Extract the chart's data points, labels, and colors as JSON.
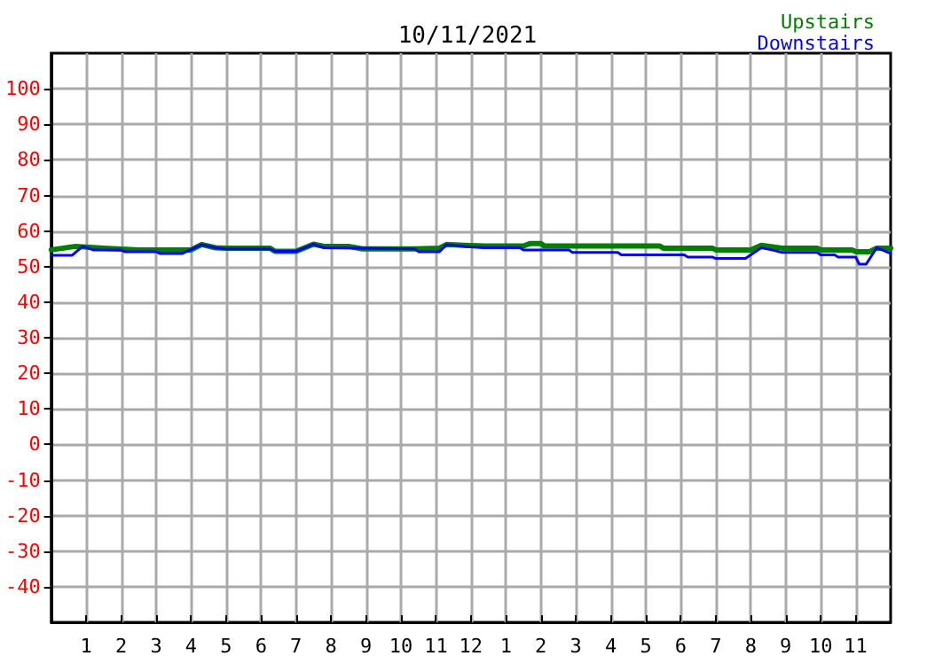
{
  "chart_data": {
    "type": "line",
    "title": "10/11/2021",
    "xlim": [
      "2021-10-11T00:00",
      "2021-10-12T00:00"
    ],
    "ylim": [
      -50,
      110
    ],
    "xticks": [
      {
        "value": "2021-10-11T01:00",
        "label": "1"
      },
      {
        "value": "2021-10-11T02:00",
        "label": "2"
      },
      {
        "value": "2021-10-11T03:00",
        "label": "3"
      },
      {
        "value": "2021-10-11T04:00",
        "label": "4"
      },
      {
        "value": "2021-10-11T05:00",
        "label": "5"
      },
      {
        "value": "2021-10-11T06:00",
        "label": "6"
      },
      {
        "value": "2021-10-11T07:00",
        "label": "7"
      },
      {
        "value": "2021-10-11T08:00",
        "label": "8"
      },
      {
        "value": "2021-10-11T09:00",
        "label": "9"
      },
      {
        "value": "2021-10-11T10:00",
        "label": "10"
      },
      {
        "value": "2021-10-11T11:00",
        "label": "11"
      },
      {
        "value": "2021-10-11T12:00",
        "label": "12"
      },
      {
        "value": "2021-10-11T13:00",
        "label": "1"
      },
      {
        "value": "2021-10-11T14:00",
        "label": "2"
      },
      {
        "value": "2021-10-11T15:00",
        "label": "3"
      },
      {
        "value": "2021-10-11T16:00",
        "label": "4"
      },
      {
        "value": "2021-10-11T17:00",
        "label": "5"
      },
      {
        "value": "2021-10-11T18:00",
        "label": "6"
      },
      {
        "value": "2021-10-11T19:00",
        "label": "7"
      },
      {
        "value": "2021-10-11T20:00",
        "label": "8"
      },
      {
        "value": "2021-10-11T21:00",
        "label": "9"
      },
      {
        "value": "2021-10-11T22:00",
        "label": "10"
      },
      {
        "value": "2021-10-11T23:00",
        "label": "11"
      }
    ],
    "yticks": [
      -40,
      -30,
      -20,
      -10,
      0,
      10,
      20,
      30,
      40,
      50,
      60,
      70,
      80,
      90,
      100
    ],
    "grid": true,
    "legend": "top right",
    "marker": "none",
    "line_style": "solid",
    "series": [
      {
        "name": "Upstairs",
        "color": "#008000",
        "x": [
          "2021-10-11T00:00",
          "2021-10-11T00:42",
          "2021-10-11T01:30",
          "2021-10-11T02:30",
          "2021-10-11T04:00",
          "2021-10-11T04:18",
          "2021-10-11T04:42",
          "2021-10-11T05:00",
          "2021-10-11T06:15",
          "2021-10-11T06:24",
          "2021-10-11T07:00",
          "2021-10-11T07:30",
          "2021-10-11T07:48",
          "2021-10-11T08:30",
          "2021-10-11T08:54",
          "2021-10-11T10:24",
          "2021-10-11T11:06",
          "2021-10-11T11:18",
          "2021-10-11T11:48",
          "2021-10-11T12:24",
          "2021-10-11T13:30",
          "2021-10-11T13:42",
          "2021-10-11T14:00",
          "2021-10-11T14:06",
          "2021-10-11T17:24",
          "2021-10-11T17:30",
          "2021-10-11T18:54",
          "2021-10-11T19:00",
          "2021-10-11T20:00",
          "2021-10-11T20:18",
          "2021-10-11T20:54",
          "2021-10-11T21:54",
          "2021-10-11T22:00",
          "2021-10-11T22:54",
          "2021-10-11T23:00",
          "2021-10-11T23:24",
          "2021-10-11T23:36",
          "2021-10-12T00:00"
        ],
        "values": [
          54.7,
          55.7,
          55.2,
          54.7,
          54.7,
          56.2,
          55.3,
          55.2,
          55.2,
          54.3,
          54.3,
          56.3,
          55.7,
          55.7,
          55,
          55,
          55.2,
          56.2,
          56,
          55.8,
          55.8,
          56.5,
          56.5,
          55.8,
          55.8,
          55.2,
          55.2,
          54.7,
          54.7,
          56,
          55.2,
          55.2,
          54.7,
          54.7,
          54.2,
          54.2,
          55.2,
          55.2
        ]
      },
      {
        "name": "Downstairs",
        "color": "#0000ff",
        "x": [
          "2021-10-11T00:00",
          "2021-10-11T00:36",
          "2021-10-11T00:54",
          "2021-10-11T01:12",
          "2021-10-11T02:00",
          "2021-10-11T02:06",
          "2021-10-11T03:00",
          "2021-10-11T03:06",
          "2021-10-11T03:45",
          "2021-10-11T04:18",
          "2021-10-11T04:42",
          "2021-10-11T05:00",
          "2021-10-11T06:15",
          "2021-10-11T06:24",
          "2021-10-11T07:00",
          "2021-10-11T07:30",
          "2021-10-11T07:48",
          "2021-10-11T08:54",
          "2021-10-11T10:24",
          "2021-10-11T10:30",
          "2021-10-11T11:06",
          "2021-10-11T11:18",
          "2021-10-11T11:48",
          "2021-10-11T12:24",
          "2021-10-11T13:24",
          "2021-10-11T13:30",
          "2021-10-11T14:48",
          "2021-10-11T14:54",
          "2021-10-11T16:12",
          "2021-10-11T16:18",
          "2021-10-11T18:06",
          "2021-10-11T18:12",
          "2021-10-11T18:54",
          "2021-10-11T19:00",
          "2021-10-11T19:51",
          "2021-10-11T20:18",
          "2021-10-11T20:36",
          "2021-10-11T20:54",
          "2021-10-11T21:54",
          "2021-10-11T22:00",
          "2021-10-11T22:24",
          "2021-10-11T22:30",
          "2021-10-11T23:00",
          "2021-10-11T23:06",
          "2021-10-11T23:18",
          "2021-10-11T23:36",
          "2021-10-12T00:00"
        ],
        "values": [
          53.2,
          53.2,
          55.7,
          54.7,
          54.7,
          54.2,
          54.2,
          53.7,
          53.7,
          56.2,
          55.3,
          55,
          55,
          54.3,
          54.3,
          56.3,
          55.3,
          55.2,
          55,
          54.2,
          54.2,
          56.2,
          55.7,
          55.3,
          55.3,
          54.7,
          54.7,
          54,
          54,
          53.3,
          53.3,
          52.7,
          52.7,
          52.3,
          52.3,
          55.3,
          54.7,
          54,
          54,
          53.3,
          53.3,
          52.7,
          52.7,
          50.7,
          50.7,
          55.3,
          53.7
        ]
      }
    ]
  }
}
